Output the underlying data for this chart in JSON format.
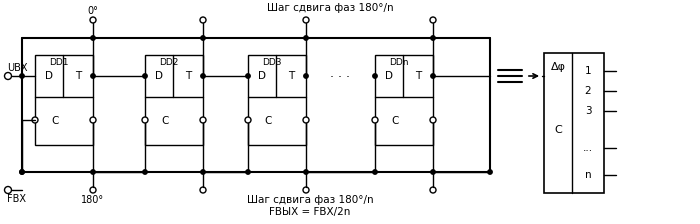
{
  "bg_color": "#ffffff",
  "line_color": "#000000",
  "text_color": "#000000",
  "title_top": "Шаг сдвига фаз 180°/n",
  "label_0deg": "0°",
  "label_180deg": "180°",
  "label_step_bottom": "Шаг сдвига фаз 180°/n",
  "label_fout": "FВЫХ = FВХ/2n",
  "label_uvx": "UВХ",
  "label_fvx": "FВХ",
  "dd_labels": [
    "DD1",
    "DD2",
    "DD3",
    "DDn"
  ],
  "label_delta_phi": "Δφ",
  "label_C": "C",
  "output_labels": [
    "1",
    "2",
    "3",
    "...",
    "n"
  ]
}
